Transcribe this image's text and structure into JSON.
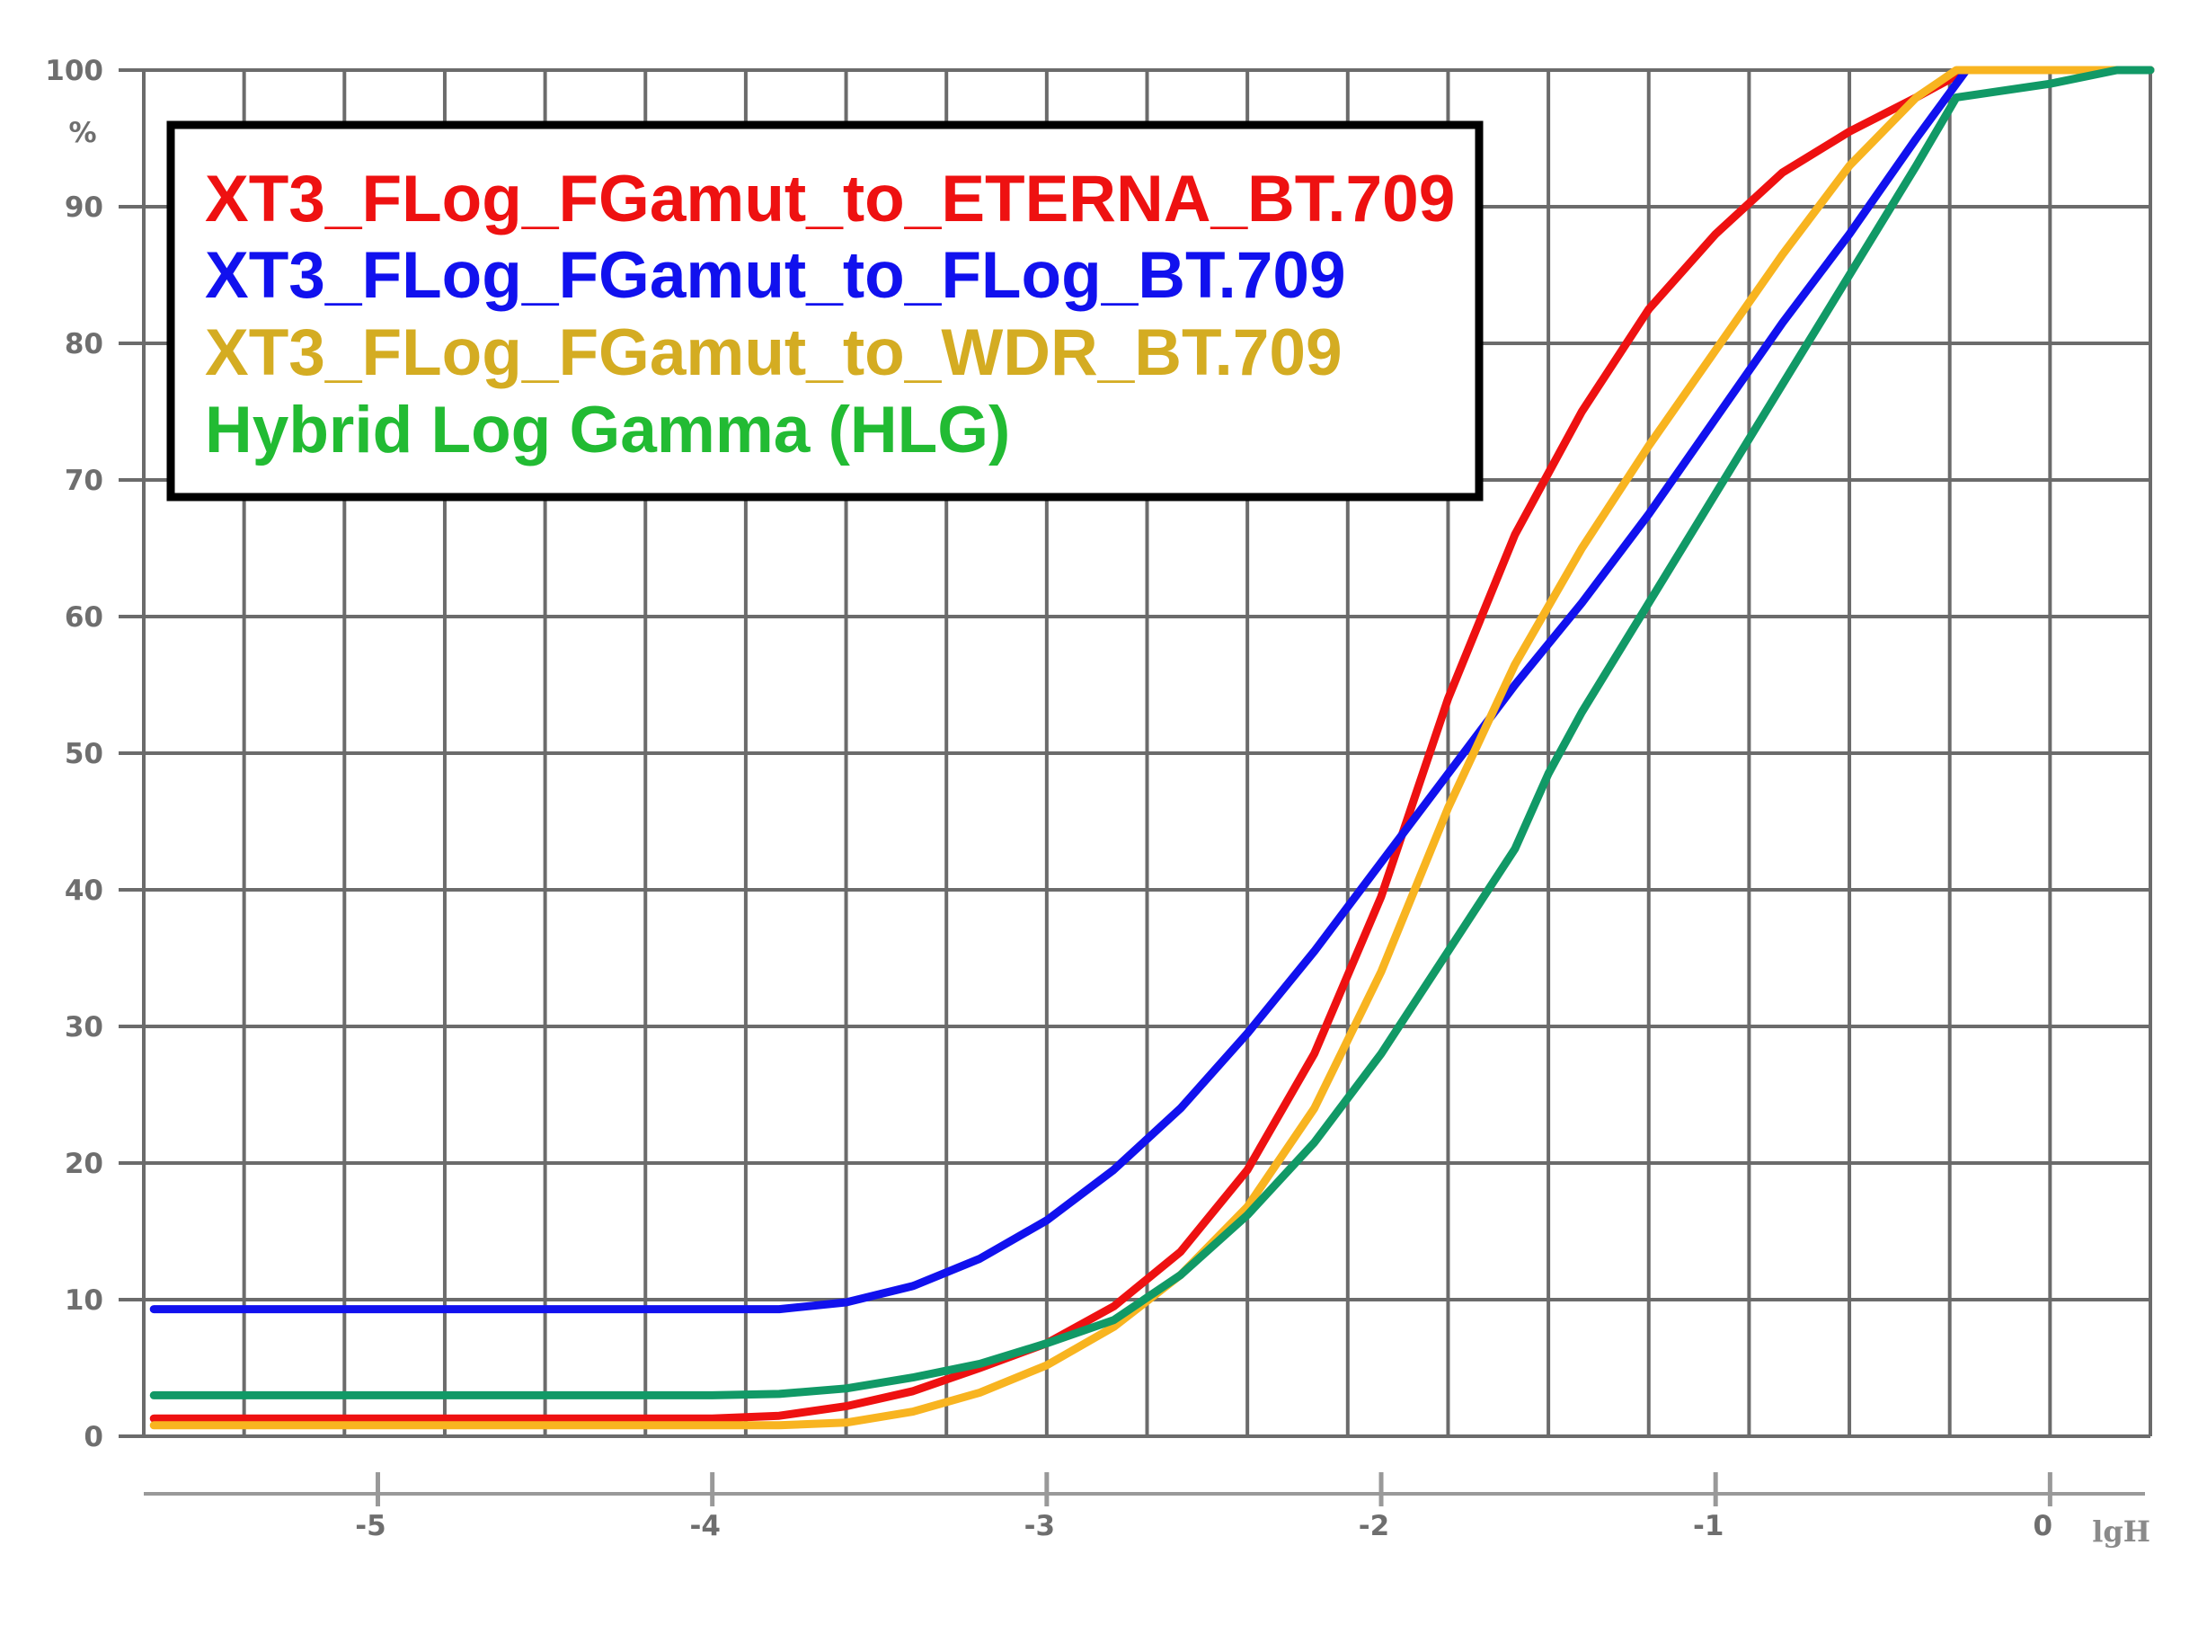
{
  "chart_data": {
    "type": "line",
    "title": "",
    "xlabel": "lgH",
    "ylabel": "%",
    "xlim": [
      -5.7,
      0.3
    ],
    "ylim": [
      0,
      100
    ],
    "grid": true,
    "legend_position": "top-left",
    "x_ticks": [
      -5,
      -4,
      -3,
      -2,
      -1,
      0
    ],
    "y_ticks": [
      0,
      10,
      20,
      30,
      40,
      50,
      60,
      70,
      80,
      90,
      100
    ],
    "series": [
      {
        "name": "XT3_FLog_FGamut_to_ETERNA_BT.709",
        "color": "#ee1111",
        "points": [
          [
            -5.67,
            1.3
          ],
          [
            -4.0,
            1.3
          ],
          [
            -3.8,
            1.5
          ],
          [
            -3.6,
            2.2
          ],
          [
            -3.4,
            3.3
          ],
          [
            -3.2,
            5.0
          ],
          [
            -3.0,
            6.8
          ],
          [
            -2.8,
            9.5
          ],
          [
            -2.6,
            13.5
          ],
          [
            -2.4,
            19.5
          ],
          [
            -2.2,
            28.0
          ],
          [
            -2.0,
            39.5
          ],
          [
            -1.8,
            54.0
          ],
          [
            -1.6,
            66.0
          ],
          [
            -1.4,
            75.0
          ],
          [
            -1.2,
            82.5
          ],
          [
            -1.0,
            88.0
          ],
          [
            -0.8,
            92.5
          ],
          [
            -0.6,
            95.5
          ],
          [
            -0.4,
            98.0
          ],
          [
            -0.25,
            100
          ],
          [
            0.3,
            100
          ]
        ]
      },
      {
        "name": "XT3_FLog_FGamut_to_FLog_BT.709",
        "color": "#1111ee",
        "points": [
          [
            -5.67,
            9.3
          ],
          [
            -3.8,
            9.3
          ],
          [
            -3.6,
            9.8
          ],
          [
            -3.4,
            11.0
          ],
          [
            -3.2,
            13.0
          ],
          [
            -3.0,
            15.8
          ],
          [
            -2.8,
            19.5
          ],
          [
            -2.6,
            24.0
          ],
          [
            -2.4,
            29.5
          ],
          [
            -2.2,
            35.5
          ],
          [
            -2.0,
            42.0
          ],
          [
            -1.8,
            48.5
          ],
          [
            -1.6,
            55.0
          ],
          [
            -1.4,
            61.0
          ],
          [
            -1.2,
            67.5
          ],
          [
            -1.0,
            74.5
          ],
          [
            -0.8,
            81.5
          ],
          [
            -0.6,
            88.0
          ],
          [
            -0.4,
            95.0
          ],
          [
            -0.25,
            100
          ],
          [
            0.3,
            100
          ]
        ]
      },
      {
        "name": "XT3_FLog_FGamut_to_WDR_BT.709",
        "color": "#f8b420",
        "points": [
          [
            -5.67,
            0.8
          ],
          [
            -3.8,
            0.8
          ],
          [
            -3.6,
            1.0
          ],
          [
            -3.4,
            1.8
          ],
          [
            -3.2,
            3.2
          ],
          [
            -3.0,
            5.2
          ],
          [
            -2.8,
            8.0
          ],
          [
            -2.6,
            11.8
          ],
          [
            -2.4,
            16.8
          ],
          [
            -2.2,
            24.0
          ],
          [
            -2.0,
            34.0
          ],
          [
            -1.8,
            46.0
          ],
          [
            -1.6,
            56.5
          ],
          [
            -1.4,
            65.0
          ],
          [
            -1.2,
            72.5
          ],
          [
            -1.0,
            79.5
          ],
          [
            -0.8,
            86.5
          ],
          [
            -0.6,
            93.0
          ],
          [
            -0.4,
            98.0
          ],
          [
            -0.28,
            100
          ],
          [
            0.3,
            100
          ]
        ]
      },
      {
        "name": "Hybrid Log Gamma (HLG)",
        "color": "#119966",
        "points": [
          [
            -5.67,
            3.0
          ],
          [
            -4.0,
            3.0
          ],
          [
            -3.8,
            3.1
          ],
          [
            -3.6,
            3.5
          ],
          [
            -3.4,
            4.3
          ],
          [
            -3.2,
            5.3
          ],
          [
            -3.0,
            6.8
          ],
          [
            -2.8,
            8.5
          ],
          [
            -2.6,
            11.8
          ],
          [
            -2.4,
            16.2
          ],
          [
            -2.2,
            21.5
          ],
          [
            -2.0,
            28.0
          ],
          [
            -1.8,
            35.5
          ],
          [
            -1.6,
            43.0
          ],
          [
            -1.5,
            48.5
          ],
          [
            -1.4,
            53.0
          ],
          [
            -1.2,
            61.0
          ],
          [
            -1.0,
            69.0
          ],
          [
            -0.8,
            77.0
          ],
          [
            -0.6,
            85.0
          ],
          [
            -0.4,
            93.0
          ],
          [
            -0.28,
            98.0
          ],
          [
            0.0,
            99.0
          ],
          [
            0.2,
            100
          ],
          [
            0.3,
            100
          ]
        ]
      }
    ]
  },
  "legend": {
    "items": [
      {
        "label": "XT3_FLog_FGamut_to_ETERNA_BT.709",
        "color": "#ee1111"
      },
      {
        "label": "XT3_FLog_FGamut_to_FLog_BT.709",
        "color": "#1111ee"
      },
      {
        "label": "XT3_FLog_FGamut_to_WDR_BT.709",
        "color": "#d4ac22"
      },
      {
        "label": "Hybrid Log Gamma (HLG)",
        "color": "#22bb33"
      }
    ]
  },
  "colors": {
    "grid": "#6b6b6b",
    "bottom_axis": "#999999",
    "tick_text": "#6e6e6e"
  }
}
